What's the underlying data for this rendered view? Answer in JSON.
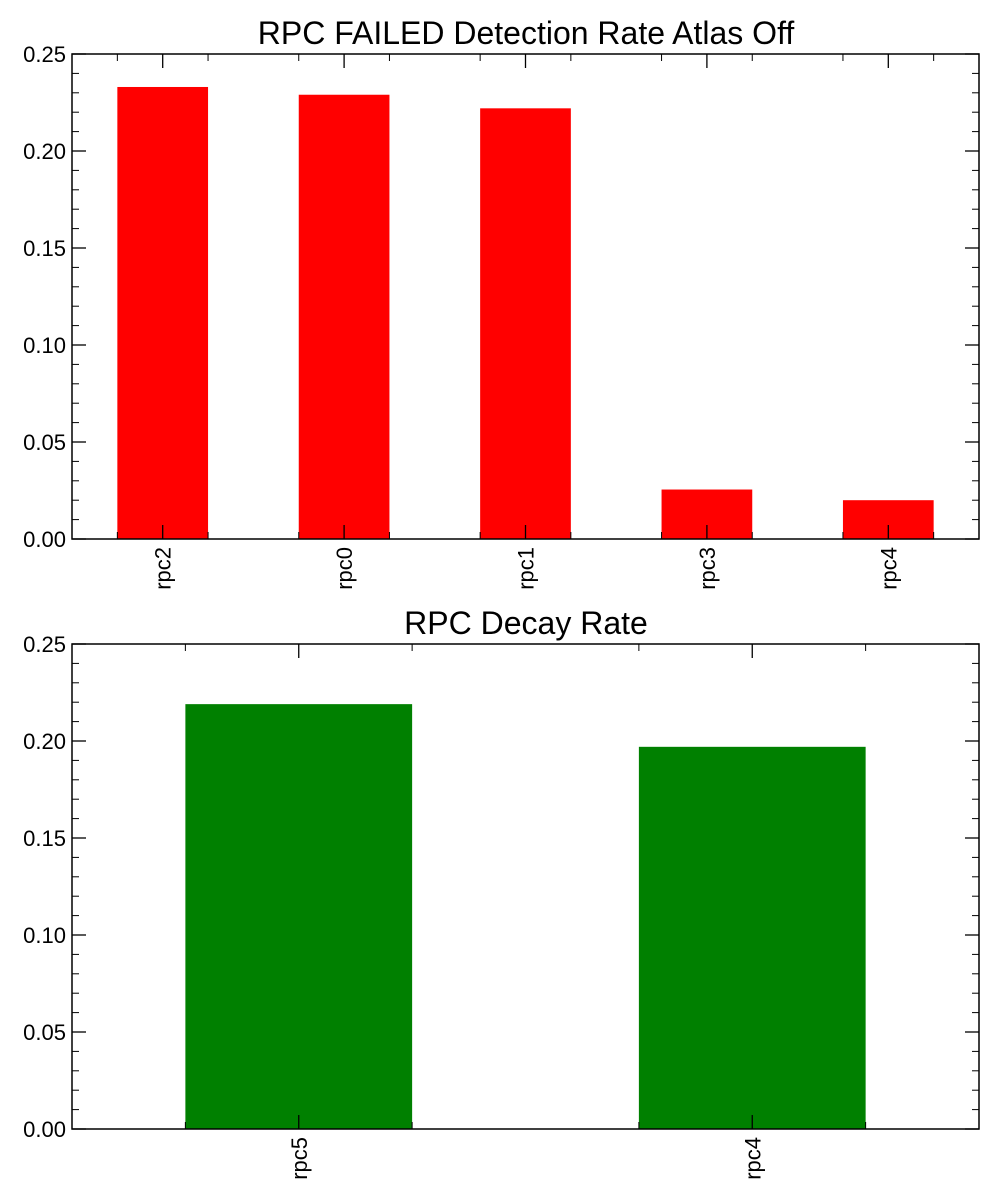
{
  "chart_data": [
    {
      "type": "bar",
      "title": "RPC FAILED Detection Rate Atlas Off",
      "categories": [
        "rpc2",
        "rpc0",
        "rpc1",
        "rpc3",
        "rpc4"
      ],
      "values": [
        0.233,
        0.229,
        0.222,
        0.0255,
        0.02
      ],
      "color": "#ff0000",
      "xlabel": "",
      "ylabel": "",
      "ylim": [
        0,
        0.25
      ],
      "yticks": [
        "0.00",
        "0.05",
        "0.10",
        "0.15",
        "0.20",
        "0.25"
      ],
      "grid": false,
      "legend": "none",
      "x_tick_rotation": "vertical"
    },
    {
      "type": "bar",
      "title": "RPC Decay Rate",
      "categories": [
        "rpc5",
        "rpc4"
      ],
      "values": [
        0.219,
        0.197
      ],
      "color": "#008000",
      "xlabel": "",
      "ylabel": "",
      "ylim": [
        0,
        0.25
      ],
      "yticks": [
        "0.00",
        "0.05",
        "0.10",
        "0.15",
        "0.20",
        "0.25"
      ],
      "grid": false,
      "legend": "none",
      "x_tick_rotation": "vertical"
    }
  ]
}
